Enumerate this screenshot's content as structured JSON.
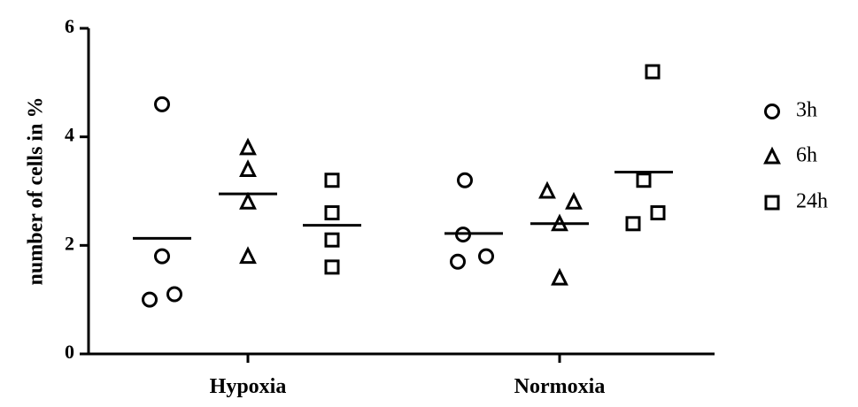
{
  "chart_data": {
    "type": "scatter",
    "title": "",
    "xlabel": "",
    "ylabel": "number of cells in %",
    "ylim": [
      0,
      6
    ],
    "yticks": [
      0,
      2,
      4,
      6
    ],
    "categories": [
      "Hypoxia",
      "Normoxia"
    ],
    "grid": false,
    "legend_position": "right",
    "series": [
      {
        "name": "3h",
        "marker": "circle",
        "values": [
          [
            4.6,
            1.8,
            1.1,
            1.0
          ],
          [
            3.2,
            2.2,
            1.8,
            1.7
          ]
        ],
        "means": [
          2.13,
          2.22
        ]
      },
      {
        "name": "6h",
        "marker": "triangle",
        "values": [
          [
            3.8,
            3.4,
            2.8,
            1.8
          ],
          [
            3.0,
            2.8,
            2.4,
            1.4
          ]
        ],
        "means": [
          2.95,
          2.4
        ]
      },
      {
        "name": "24h",
        "marker": "square",
        "values": [
          [
            3.2,
            2.6,
            2.1,
            1.6
          ],
          [
            5.2,
            3.2,
            2.6,
            2.4
          ]
        ],
        "means": [
          2.37,
          3.35
        ]
      }
    ],
    "colors": {
      "marker_stroke": "#000000",
      "axis": "#000000"
    }
  }
}
